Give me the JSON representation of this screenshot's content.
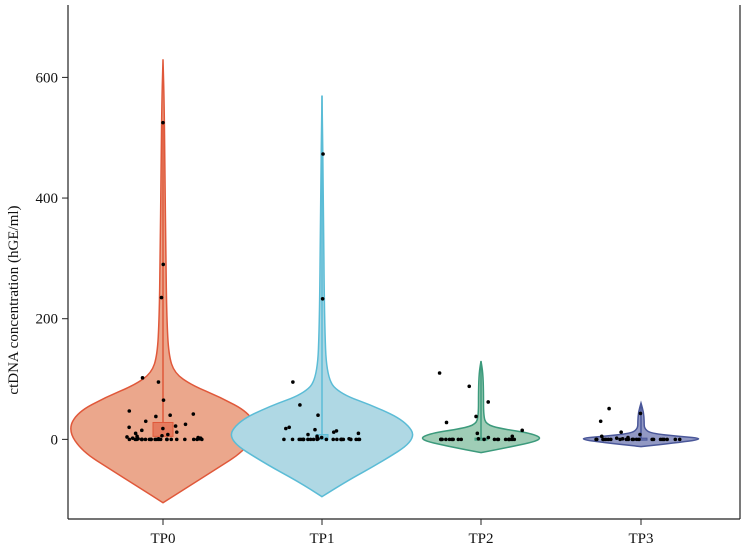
{
  "chart_data": {
    "type": "violin",
    "title": "",
    "xlabel": "",
    "ylabel": "ctDNA concentration (hGE/ml)",
    "ylim": [
      -132,
      720
    ],
    "yticks": [
      0,
      200,
      400,
      600
    ],
    "grid": false,
    "categories": [
      "TP0",
      "TP1",
      "TP2",
      "TP3"
    ],
    "series": [
      {
        "category": "TP0",
        "fill": "#eba78c",
        "stroke": "#e0583a",
        "density_profile": [
          [
            -105,
            0
          ],
          [
            -80,
            0.25
          ],
          [
            -50,
            0.55
          ],
          [
            -20,
            0.85
          ],
          [
            15,
            1
          ],
          [
            45,
            0.9
          ],
          [
            70,
            0.6
          ],
          [
            90,
            0.3
          ],
          [
            110,
            0.12
          ],
          [
            140,
            0.06
          ],
          [
            200,
            0.04
          ],
          [
            300,
            0.03
          ],
          [
            450,
            0.02
          ],
          [
            560,
            0.012
          ],
          [
            630,
            0
          ]
        ],
        "box": {
          "q1": 5,
          "q3": 28,
          "whisker_high": 525
        },
        "points": [
          525,
          290,
          235,
          102,
          95,
          65,
          47,
          42,
          40,
          38,
          30,
          25,
          22,
          20,
          18,
          15,
          12,
          10,
          8,
          6,
          5,
          4,
          3,
          2,
          2,
          1,
          1,
          1,
          0,
          0,
          0,
          0,
          0,
          0,
          0,
          0,
          0,
          0,
          0,
          0,
          0,
          0,
          0,
          0,
          0,
          0,
          0,
          0,
          0,
          0
        ]
      },
      {
        "category": "TP1",
        "fill": "#afd8e4",
        "stroke": "#5bbcd6",
        "density_profile": [
          [
            -95,
            0
          ],
          [
            -70,
            0.25
          ],
          [
            -40,
            0.6
          ],
          [
            0,
            1
          ],
          [
            30,
            0.88
          ],
          [
            55,
            0.55
          ],
          [
            75,
            0.2
          ],
          [
            100,
            0.05
          ],
          [
            200,
            0.025
          ],
          [
            400,
            0.015
          ],
          [
            570,
            0
          ]
        ],
        "box": {
          "q1": 0,
          "q3": 8,
          "whisker_high": 570
        },
        "points": [
          473,
          233,
          95,
          57,
          40,
          20,
          18,
          16,
          14,
          12,
          10,
          8,
          5,
          3,
          2,
          1,
          1,
          0,
          0,
          0,
          0,
          0,
          0,
          0,
          0,
          0,
          0,
          0,
          0,
          0,
          0,
          0,
          0,
          0,
          0,
          0,
          0,
          0,
          0,
          0
        ]
      },
      {
        "category": "TP2",
        "fill": "#9fcdb6",
        "stroke": "#3c9a7c",
        "density_profile": [
          [
            -22,
            0
          ],
          [
            -12,
            0.5
          ],
          [
            0,
            1
          ],
          [
            10,
            0.8
          ],
          [
            18,
            0.3
          ],
          [
            25,
            0.08
          ],
          [
            40,
            0.04
          ],
          [
            80,
            0.04
          ],
          [
            110,
            0.03
          ],
          [
            130,
            0
          ]
        ],
        "box": {
          "q1": 0,
          "q3": 2,
          "whisker_high": 128
        },
        "points": [
          110,
          88,
          62,
          38,
          28,
          15,
          10,
          5,
          3,
          1,
          0,
          0,
          0,
          0,
          0,
          0,
          0,
          0,
          0,
          0,
          0,
          0,
          0,
          0,
          0,
          0,
          0,
          0,
          0
        ]
      },
      {
        "category": "TP3",
        "fill": "#9299c4",
        "stroke": "#4a5799",
        "density_profile": [
          [
            -12,
            0
          ],
          [
            -5,
            0.6
          ],
          [
            1,
            1
          ],
          [
            5,
            0.6
          ],
          [
            10,
            0.15
          ],
          [
            18,
            0.05
          ],
          [
            30,
            0.05
          ],
          [
            45,
            0.04
          ],
          [
            60,
            0
          ]
        ],
        "box": {
          "q1": 0,
          "q3": 2,
          "whisker_high": 58
        },
        "points": [
          51,
          43,
          30,
          12,
          8,
          5,
          3,
          2,
          1,
          0,
          0,
          0,
          0,
          0,
          0,
          0,
          0,
          0,
          0,
          0,
          0,
          0,
          0,
          0,
          0,
          0,
          0,
          0,
          0,
          0,
          0
        ]
      }
    ]
  }
}
